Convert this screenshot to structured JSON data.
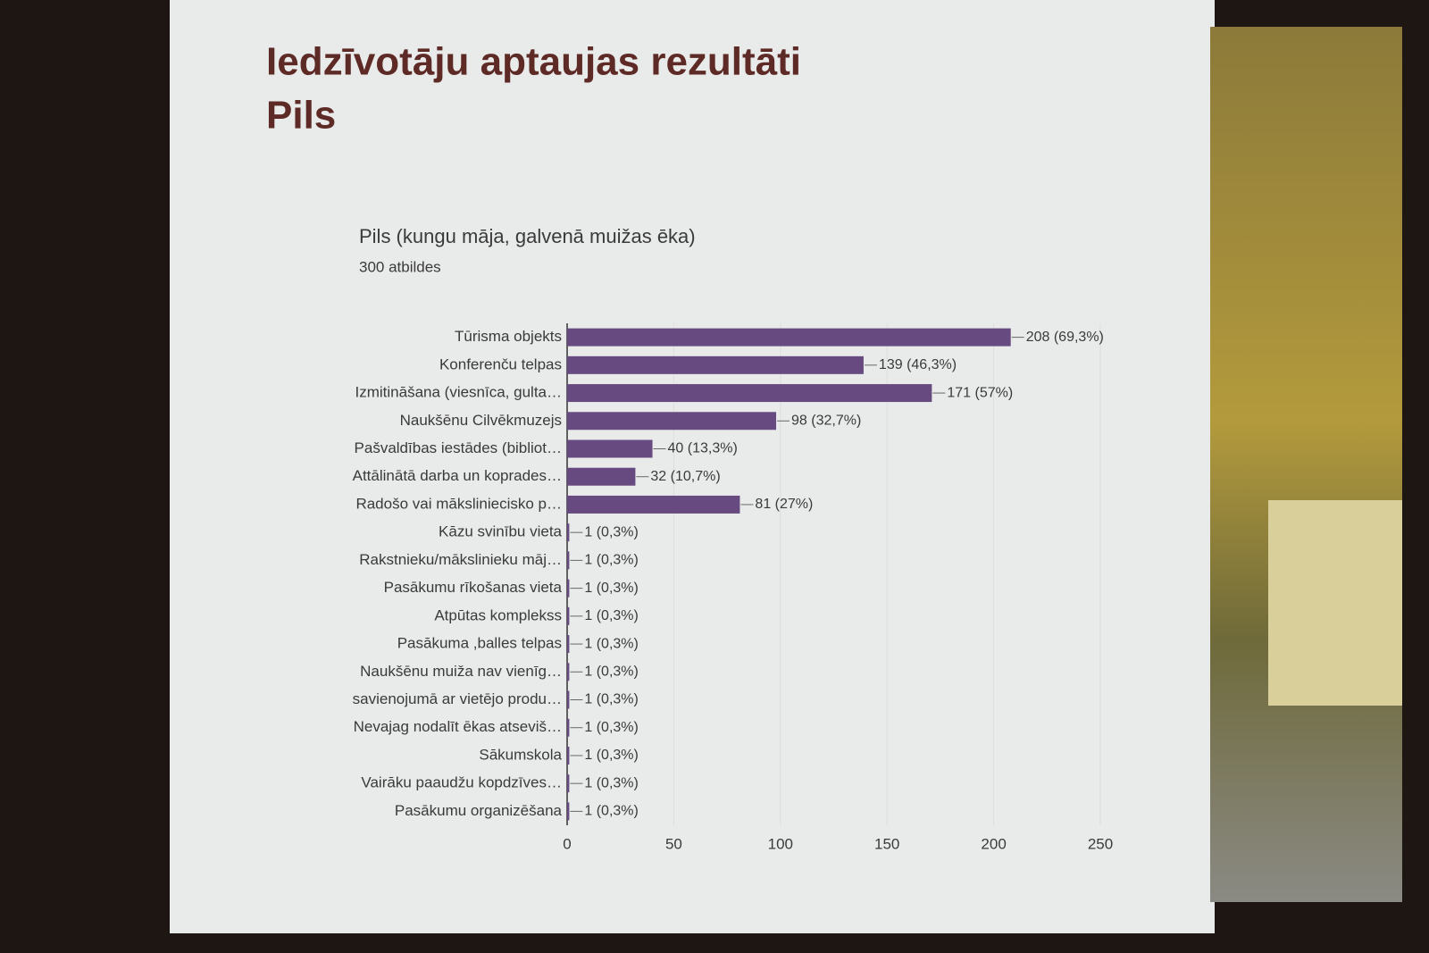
{
  "slide_title": [
    "Iedzīvotāju aptaujas rezultāti",
    "Pils"
  ],
  "chart_data": {
    "type": "bar",
    "orientation": "horizontal",
    "title": "Pils (kungu māja, galvenā muižas ēka)",
    "subtitle": "300 atbildes",
    "categories": [
      "Tūrisma objekts",
      "Konferenču telpas",
      "Izmitināšana (viesnīca, gulta…",
      "Naukšēnu Cilvēkmuzejs",
      "Pašvaldības iestādes (bibliot…",
      "Attālinātā darba un koprades…",
      "Radošo vai mākslinieciskо p…",
      "Kāzu svinību vieta",
      "Rakstnieku/mākslinieku māj…",
      "Pasākumu rīkošanas vieta",
      "Atpūtas komplekss",
      "Pasākuma ,balles telpas",
      "Naukšēnu muiža nav vienīg…",
      "savienojumā ar vietējo produ…",
      "Nevajag nodalīt ēkas atseviš…",
      "Sākumskola",
      "Vairāku paaudžu kopdzīves…",
      "Pasākumu organizēšana"
    ],
    "values": [
      208,
      139,
      171,
      98,
      40,
      32,
      81,
      1,
      1,
      1,
      1,
      1,
      1,
      1,
      1,
      1,
      1,
      1
    ],
    "value_labels": [
      "208 (69,3%)",
      "139 (46,3%)",
      "171 (57%)",
      "98 (32,7%)",
      "40 (13,3%)",
      "32 (10,7%)",
      "81 (27%)",
      "1 (0,3%)",
      "1 (0,3%)",
      "1 (0,3%)",
      "1 (0,3%)",
      "1 (0,3%)",
      "1 (0,3%)",
      "1 (0,3%)",
      "1 (0,3%)",
      "1 (0,3%)",
      "1 (0,3%)",
      "1 (0,3%)"
    ],
    "color": "#674a80",
    "xlim": [
      0,
      250
    ],
    "xticks": [
      0,
      50,
      100,
      150,
      200,
      250
    ],
    "grid": true
  }
}
